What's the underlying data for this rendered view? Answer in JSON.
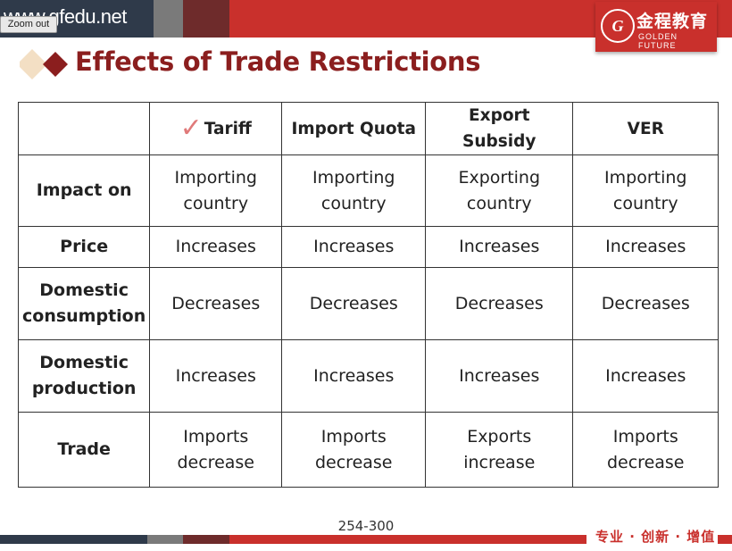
{
  "header": {
    "site_text": "www.gfedu.net",
    "zoom_out_label": "Zoom out",
    "logo_cn": "金程教育",
    "logo_en": "GOLDEN FUTURE",
    "logo_mark": "G"
  },
  "title": "Effects of Trade Restrictions",
  "table": {
    "columns": [
      "",
      "Tariff",
      "Import Quota",
      "Export Subsidy",
      "VER"
    ],
    "rows": [
      {
        "label": "Impact on",
        "cells": [
          "Importing country",
          "Importing country",
          "Exporting country",
          "Importing country"
        ]
      },
      {
        "label": "Price",
        "cells": [
          "Increases",
          "Increases",
          "Increases",
          "Increases"
        ]
      },
      {
        "label": "Domestic consumption",
        "cells": [
          "Decreases",
          "Decreases",
          "Decreases",
          "Decreases"
        ]
      },
      {
        "label": "Domestic production",
        "cells": [
          "Increases",
          "Increases",
          "Increases",
          "Increases"
        ]
      },
      {
        "label": "Trade",
        "cells": [
          "Imports decrease",
          "Imports decrease",
          "Exports increase",
          "Imports decrease"
        ]
      }
    ]
  },
  "footer": {
    "page_number": "254-300",
    "slogan": "专业 · 创新 · 增值"
  },
  "colors": {
    "brand_red": "#c9302c",
    "title_red": "#8b1e1e",
    "navy": "#2f3a4a",
    "check_mark": "#e07a7a"
  }
}
